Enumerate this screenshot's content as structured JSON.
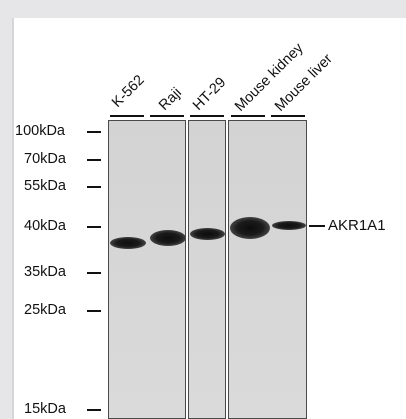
{
  "blot": {
    "lanes": [
      {
        "label": "K-562"
      },
      {
        "label": "Raji"
      },
      {
        "label": "HT-29"
      },
      {
        "label": "Mouse kidney"
      },
      {
        "label": "Mouse liver"
      }
    ],
    "markers": [
      {
        "label": "100kDa"
      },
      {
        "label": "70kDa"
      },
      {
        "label": "55kDa"
      },
      {
        "label": "40kDa"
      },
      {
        "label": "35kDa"
      },
      {
        "label": "25kDa"
      },
      {
        "label": "15kDa"
      }
    ],
    "target": {
      "label": "AKR1A1"
    },
    "colors": {
      "band": "#111111",
      "membrane": "#d5d5d5",
      "frame": "#e6e6e8"
    }
  }
}
